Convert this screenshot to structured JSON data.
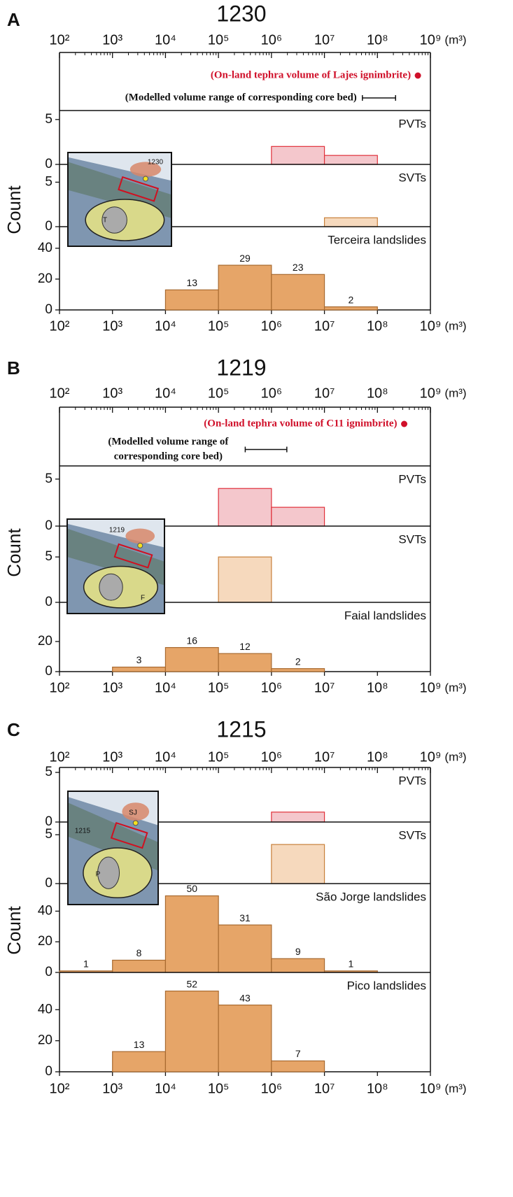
{
  "chart_data": [
    {
      "type": "histogram",
      "panel": "A",
      "title": "1230",
      "ylabel": "Count",
      "x_unit": "(m³)",
      "xscale": "log",
      "minor_ticks": true,
      "xlim": [
        100,
        1000000000
      ],
      "xticks": [
        {
          "value": 100,
          "label": "10²"
        },
        {
          "value": 1000,
          "label": "10³"
        },
        {
          "value": 10000,
          "label": "10⁴"
        },
        {
          "value": 100000,
          "label": "10⁵"
        },
        {
          "value": 1000000,
          "label": "10⁶"
        },
        {
          "value": 10000000,
          "label": "10⁷"
        },
        {
          "value": 100000000,
          "label": "10⁸"
        },
        {
          "value": 1000000000,
          "label": "10⁹"
        }
      ],
      "point_annotation": {
        "text": "(On-land tephra volume of Lajes ignimbrite)",
        "value": 580000000,
        "color": "#d0102a"
      },
      "range_annotation": {
        "text": [
          "(Modelled volume range of corresponding core bed)"
        ],
        "values": [
          52000000,
          220000000
        ]
      },
      "inset_labels": [
        "1230",
        "T"
      ],
      "series": [
        {
          "name": "PVTs",
          "color": "#f4c7cc",
          "edge": "#e0303a",
          "bins": [
            1000000,
            10000000,
            100000000
          ],
          "values": [
            2,
            1
          ],
          "ylim": [
            0,
            6
          ],
          "yticks": [
            0,
            5
          ],
          "show_values": false
        },
        {
          "name": "SVTs",
          "color": "#f6d9bd",
          "edge": "#c8803a",
          "bins": [
            10000000,
            100000000
          ],
          "values": [
            1
          ],
          "ylim": [
            0,
            7
          ],
          "yticks": [
            0,
            5
          ],
          "show_values": false
        },
        {
          "name": "Terceira landslides",
          "color": "#e6a568",
          "edge": "#a86a30",
          "bins": [
            10000,
            100000,
            1000000,
            10000000,
            100000000
          ],
          "values": [
            13,
            29,
            23,
            2
          ],
          "ylim": [
            0,
            54
          ],
          "yticks": [
            0,
            20,
            40
          ],
          "show_values": true
        }
      ]
    },
    {
      "type": "histogram",
      "panel": "B",
      "title": "1219",
      "ylabel": "Count",
      "x_unit": "(m³)",
      "xscale": "log",
      "minor_ticks": true,
      "xlim": [
        100,
        1000000000
      ],
      "xticks": [
        {
          "value": 100,
          "label": "10²"
        },
        {
          "value": 1000,
          "label": "10³"
        },
        {
          "value": 10000,
          "label": "10⁴"
        },
        {
          "value": 100000,
          "label": "10⁵"
        },
        {
          "value": 1000000,
          "label": "10⁶"
        },
        {
          "value": 10000000,
          "label": "10⁷"
        },
        {
          "value": 100000000,
          "label": "10⁸"
        },
        {
          "value": 1000000000,
          "label": "10⁹"
        }
      ],
      "point_annotation": {
        "text": "(On-land tephra volume of C11 ignimbrite)",
        "value": 320000000,
        "color": "#d0102a"
      },
      "range_annotation": {
        "text": [
          "(Modelled volume range of",
          "corresponding core bed)"
        ],
        "values": [
          320000,
          1950000
        ]
      },
      "inset_labels": [
        "1219",
        "F"
      ],
      "series": [
        {
          "name": "PVTs",
          "color": "#f4c7cc",
          "edge": "#e0303a",
          "bins": [
            100000,
            1000000,
            10000000
          ],
          "values": [
            4,
            2
          ],
          "ylim": [
            0,
            6.4
          ],
          "yticks": [
            0,
            5
          ],
          "show_values": false
        },
        {
          "name": "SVTs",
          "color": "#f6d9bd",
          "edge": "#c8803a",
          "bins": [
            100000,
            1000000
          ],
          "values": [
            5
          ],
          "ylim": [
            0,
            8.4
          ],
          "yticks": [
            0,
            5
          ],
          "show_values": false
        },
        {
          "name": "Faial landslides",
          "color": "#e6a568",
          "edge": "#a86a30",
          "bins": [
            1000,
            10000,
            100000,
            1000000,
            10000000
          ],
          "values": [
            3,
            16,
            12,
            2
          ],
          "ylim": [
            0,
            46
          ],
          "yticks": [
            0,
            20
          ],
          "show_values": true
        }
      ]
    },
    {
      "type": "histogram",
      "panel": "C",
      "title": "1215",
      "ylabel": "Count",
      "x_unit": "(m³)",
      "xscale": "log",
      "minor_ticks": true,
      "xlim": [
        100,
        1000000000
      ],
      "xticks": [
        {
          "value": 100,
          "label": "10²"
        },
        {
          "value": 1000,
          "label": "10³"
        },
        {
          "value": 10000,
          "label": "10⁴"
        },
        {
          "value": 100000,
          "label": "10⁵"
        },
        {
          "value": 1000000,
          "label": "10⁶"
        },
        {
          "value": 10000000,
          "label": "10⁷"
        },
        {
          "value": 100000000,
          "label": "10⁸"
        },
        {
          "value": 1000000000,
          "label": "10⁹"
        }
      ],
      "inset_labels": [
        "1215",
        "SJ",
        "P"
      ],
      "series": [
        {
          "name": "PVTs",
          "color": "#f4c7cc",
          "edge": "#e0303a",
          "bins": [
            1000000,
            10000000
          ],
          "values": [
            1
          ],
          "ylim": [
            0,
            5.5
          ],
          "yticks": [
            0,
            5
          ],
          "show_values": false
        },
        {
          "name": "SVTs",
          "color": "#f6d9bd",
          "edge": "#c8803a",
          "bins": [
            1000000,
            10000000
          ],
          "values": [
            4
          ],
          "ylim": [
            0,
            6.3
          ],
          "yticks": [
            0,
            5
          ],
          "show_values": false
        },
        {
          "name": "São Jorge landslides",
          "color": "#e6a568",
          "edge": "#a86a30",
          "bins": [
            100,
            1000,
            10000,
            100000,
            1000000,
            10000000,
            100000000
          ],
          "values": [
            1,
            8,
            50,
            31,
            9,
            1
          ],
          "ylim": [
            0,
            58
          ],
          "yticks": [
            0,
            20,
            40
          ],
          "show_values": true
        },
        {
          "name": "Pico landslides",
          "color": "#e6a568",
          "edge": "#a86a30",
          "bins": [
            1000,
            10000,
            100000,
            1000000,
            10000000
          ],
          "values": [
            13,
            52,
            43,
            7
          ],
          "ylim": [
            0,
            64
          ],
          "yticks": [
            0,
            20,
            40
          ],
          "show_values": true
        }
      ]
    }
  ]
}
